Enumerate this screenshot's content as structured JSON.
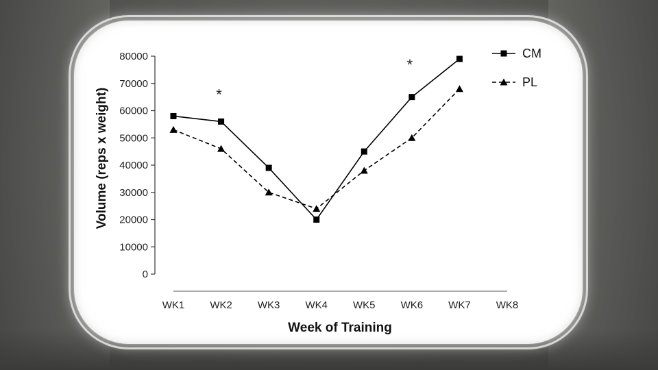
{
  "chart_data": {
    "type": "line",
    "categories": [
      "WK1",
      "WK2",
      "WK3",
      "WK4",
      "WK5",
      "WK6",
      "WK7",
      "WK8"
    ],
    "series": [
      {
        "name": "CM",
        "values": [
          58000,
          56000,
          39000,
          20000,
          45000,
          65000,
          79000,
          null
        ],
        "marker": "square",
        "line": "solid",
        "color": "#000000"
      },
      {
        "name": "PL",
        "values": [
          53000,
          46000,
          30000,
          24000,
          38000,
          50000,
          68000,
          null
        ],
        "marker": "triangle",
        "line": "dashed",
        "color": "#000000"
      }
    ],
    "xlabel": "Week of Training",
    "ylabel": "Volume (reps x weight)",
    "yticks": [
      0,
      10000,
      20000,
      30000,
      40000,
      50000,
      60000,
      70000,
      80000
    ],
    "ylim": [
      0,
      80000
    ],
    "grid": false,
    "legend_position": "top-right",
    "annotations": [
      {
        "text": "*",
        "category": "WK2",
        "y": 67000
      },
      {
        "text": "*",
        "category": "WK6",
        "y": 78000
      }
    ]
  }
}
